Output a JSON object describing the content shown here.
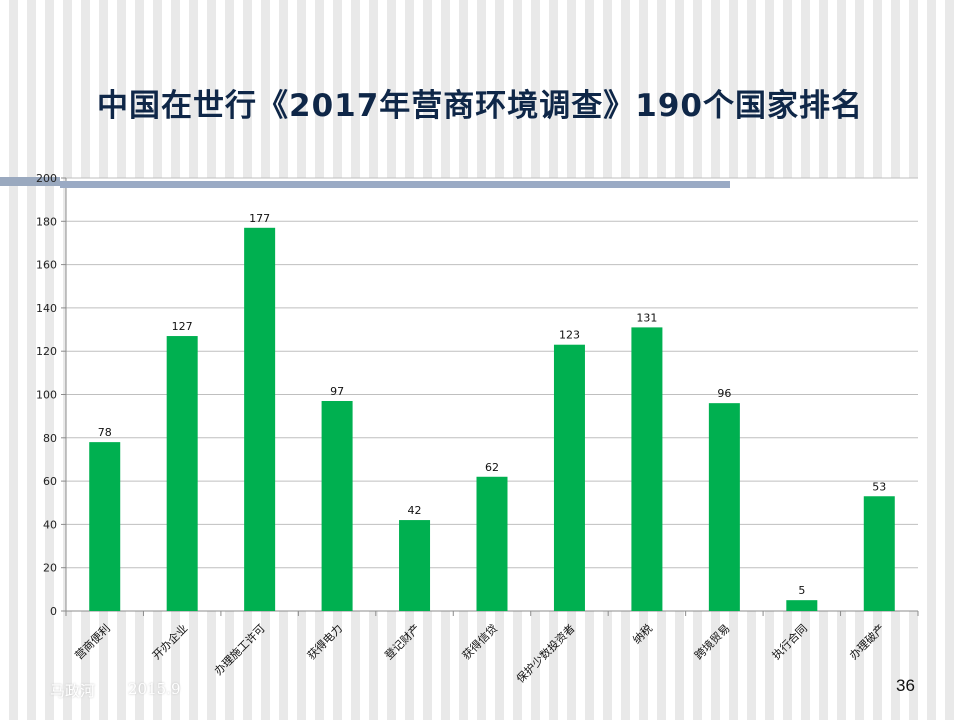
{
  "slide": {
    "title": "中国在世行《2017年营商环境调查》190个国家排名",
    "author": "马政河",
    "date": "2015.9",
    "page_number": "36"
  },
  "colors": {
    "bar": "#00b050",
    "grid": "#bfbfbf",
    "axis": "#8c8c8c",
    "title": "#0f2748"
  },
  "chart_data": {
    "type": "bar",
    "title": "",
    "xlabel": "",
    "ylabel": "",
    "categories": [
      "营商便利",
      "开办企业",
      "办理施工许可",
      "获得电力",
      "登记财产",
      "获得信贷",
      "保护少数投资者",
      "纳税",
      "跨境贸易",
      "执行合同",
      "办理破产"
    ],
    "values": [
      78,
      127,
      177,
      97,
      42,
      62,
      123,
      131,
      96,
      5,
      53
    ],
    "ylim": [
      0,
      200
    ],
    "yticks": [
      0,
      20,
      40,
      60,
      80,
      100,
      120,
      140,
      160,
      180,
      200
    ],
    "grid": true,
    "legend": "none",
    "data_labels": true
  }
}
